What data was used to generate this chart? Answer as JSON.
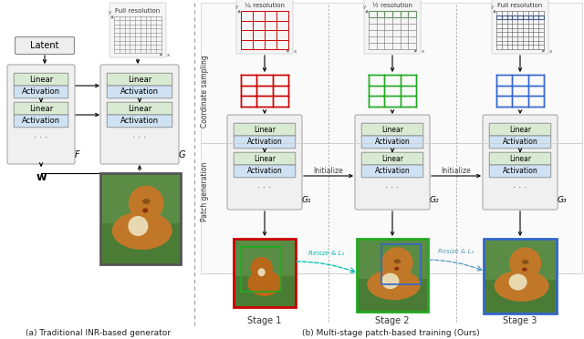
{
  "fig_width": 6.4,
  "fig_height": 3.72,
  "dpi": 100,
  "bg_color": "#ffffff",
  "linear_color": "#d9ead3",
  "activation_color": "#cfe2f3",
  "box_edge": "#aaaaaa",
  "box_bg": "#eeeeee",
  "net_bg": "#f0f0f0",
  "title_a": "(a) Traditional INR-based generator",
  "title_b": "(b) Multi-stage patch-based training (Ours)",
  "stage_labels": [
    "Stage 1",
    "Stage 2",
    "Stage 3"
  ],
  "G_labels": [
    "G₁",
    "G₂",
    "G₃"
  ],
  "res_labels": [
    "¼ resolution",
    "½ resolution",
    "Full resolution"
  ],
  "stage_colors": [
    "#cc0000",
    "#22aa22",
    "#3366cc"
  ],
  "resize_color_1": "#00bbaa",
  "resize_color_2": "#5599bb",
  "divider_color": "#999999",
  "grid_bg_color": "#f5f5f5",
  "grid_bg_edge": "#cccccc"
}
